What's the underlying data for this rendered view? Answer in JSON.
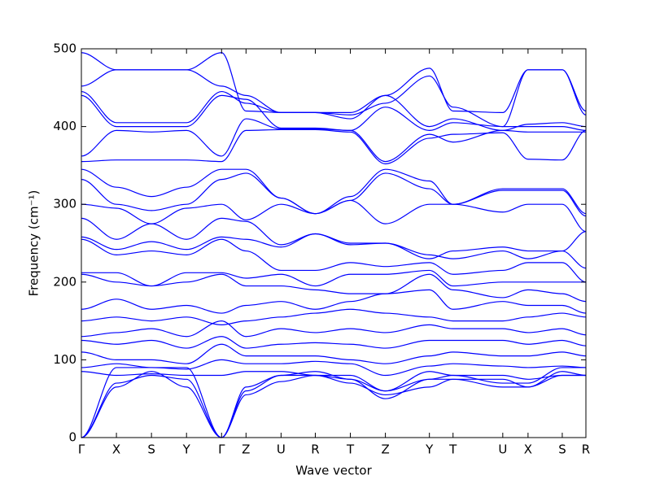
{
  "chart_data": {
    "type": "line",
    "xlabel": "Wave vector",
    "ylabel": "Frequency (cm⁻¹)",
    "color": "#0000ff",
    "x": [
      0,
      0.43,
      0.86,
      1.29,
      1.72,
      2.02,
      2.45,
      2.87,
      3.3,
      3.73,
      4.27,
      4.56,
      5.17,
      5.48,
      5.9,
      6.19
    ],
    "xlim": [
      0,
      6.19
    ],
    "xticks": [
      {
        "value": 0,
        "label": "Γ"
      },
      {
        "value": 0.43,
        "label": "X"
      },
      {
        "value": 0.86,
        "label": "S"
      },
      {
        "value": 1.29,
        "label": "Y"
      },
      {
        "value": 1.72,
        "label": "Γ"
      },
      {
        "value": 2.02,
        "label": "Z"
      },
      {
        "value": 2.45,
        "label": "U"
      },
      {
        "value": 2.87,
        "label": "R"
      },
      {
        "value": 3.3,
        "label": "T"
      },
      {
        "value": 3.73,
        "label": "Z"
      },
      {
        "value": 4.27,
        "label": "Y"
      },
      {
        "value": 4.56,
        "label": "T"
      },
      {
        "value": 5.17,
        "label": "U"
      },
      {
        "value": 5.48,
        "label": "X"
      },
      {
        "value": 5.9,
        "label": "S"
      },
      {
        "value": 6.19,
        "label": "R"
      }
    ],
    "ylim": [
      0,
      500
    ],
    "yticks": [
      0,
      100,
      200,
      300,
      400,
      500
    ],
    "series": [
      {
        "values": [
          495,
          473,
          473,
          473,
          495,
          420,
          418,
          418,
          418,
          440,
          475,
          420,
          418,
          473,
          473,
          420
        ]
      },
      {
        "values": [
          452,
          473,
          473,
          473,
          452,
          440,
          418,
          418,
          415,
          430,
          465,
          425,
          400,
          473,
          473,
          415
        ]
      },
      {
        "values": [
          445,
          405,
          405,
          405,
          445,
          430,
          418,
          418,
          410,
          440,
          400,
          410,
          395,
          403,
          405,
          400
        ]
      },
      {
        "values": [
          440,
          400,
          400,
          400,
          440,
          435,
          398,
          398,
          395,
          425,
          395,
          405,
          400,
          400,
          400,
          395
        ]
      },
      {
        "values": [
          362,
          395,
          393,
          395,
          362,
          410,
          397,
          397,
          395,
          355,
          390,
          380,
          395,
          393,
          393,
          393
        ]
      },
      {
        "values": [
          355,
          357,
          357,
          357,
          355,
          395,
          396,
          396,
          393,
          352,
          385,
          390,
          392,
          358,
          357,
          395
        ]
      },
      {
        "values": [
          345,
          322,
          310,
          322,
          345,
          345,
          308,
          288,
          310,
          345,
          330,
          300,
          320,
          320,
          320,
          288
        ]
      },
      {
        "values": [
          332,
          300,
          292,
          300,
          332,
          340,
          308,
          288,
          305,
          340,
          320,
          300,
          318,
          318,
          318,
          285
        ]
      },
      {
        "values": [
          300,
          295,
          275,
          295,
          300,
          280,
          300,
          288,
          305,
          275,
          300,
          300,
          290,
          300,
          300,
          265
        ]
      },
      {
        "values": [
          282,
          255,
          275,
          255,
          282,
          278,
          248,
          262,
          250,
          250,
          230,
          240,
          245,
          240,
          240,
          265
        ]
      },
      {
        "values": [
          258,
          242,
          252,
          242,
          258,
          255,
          245,
          262,
          248,
          250,
          235,
          230,
          240,
          230,
          240,
          218
        ]
      },
      {
        "values": [
          255,
          235,
          240,
          235,
          255,
          240,
          215,
          215,
          225,
          220,
          225,
          210,
          215,
          225,
          225,
          200
        ]
      },
      {
        "values": [
          212,
          212,
          195,
          212,
          212,
          205,
          210,
          195,
          210,
          210,
          215,
          195,
          200,
          200,
          200,
          200
        ]
      },
      {
        "values": [
          210,
          200,
          195,
          200,
          210,
          195,
          195,
          190,
          185,
          185,
          210,
          190,
          180,
          190,
          185,
          175
        ]
      },
      {
        "values": [
          165,
          178,
          165,
          170,
          160,
          170,
          175,
          165,
          175,
          185,
          190,
          165,
          175,
          170,
          170,
          160
        ]
      },
      {
        "values": [
          150,
          155,
          150,
          155,
          145,
          150,
          155,
          160,
          165,
          160,
          155,
          150,
          150,
          155,
          160,
          155
        ]
      },
      {
        "values": [
          130,
          135,
          140,
          130,
          150,
          130,
          140,
          135,
          140,
          135,
          145,
          140,
          140,
          135,
          140,
          132
        ]
      },
      {
        "values": [
          125,
          120,
          125,
          115,
          130,
          115,
          120,
          122,
          120,
          115,
          125,
          125,
          125,
          120,
          125,
          118
        ]
      },
      {
        "values": [
          110,
          100,
          100,
          95,
          120,
          105,
          105,
          105,
          100,
          95,
          105,
          110,
          105,
          105,
          110,
          105
        ]
      },
      {
        "values": [
          90,
          95,
          90,
          88,
          100,
          95,
          95,
          98,
          95,
          80,
          92,
          95,
          92,
          90,
          92,
          90
        ]
      },
      {
        "values": [
          85,
          80,
          82,
          80,
          80,
          85,
          85,
          80,
          80,
          60,
          85,
          80,
          80,
          75,
          80,
          80
        ]
      },
      {
        "values": [
          0,
          65,
          85,
          65,
          0,
          55,
          72,
          80,
          70,
          55,
          65,
          75,
          65,
          65,
          85,
          80
        ]
      },
      {
        "values": [
          0,
          70,
          80,
          75,
          0,
          60,
          80,
          80,
          75,
          50,
          75,
          75,
          75,
          65,
          80,
          80
        ]
      },
      {
        "values": [
          0,
          90,
          90,
          90,
          0,
          65,
          80,
          85,
          75,
          60,
          75,
          80,
          70,
          70,
          90,
          90
        ]
      }
    ]
  }
}
